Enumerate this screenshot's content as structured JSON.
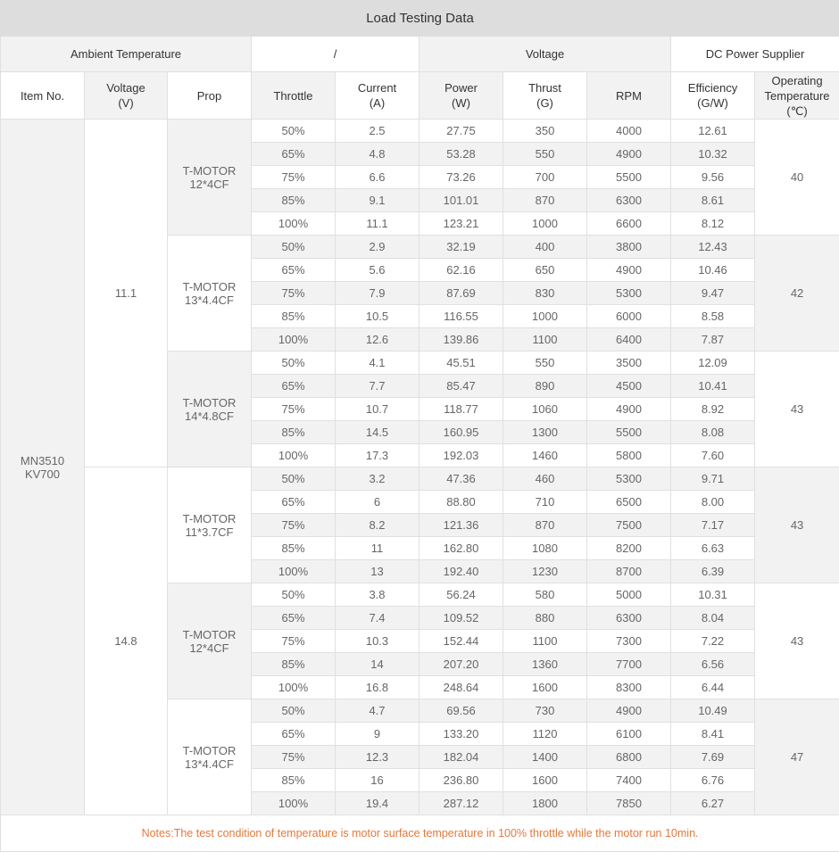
{
  "title": "Load Testing Data",
  "header_row1": [
    "Ambient Temperature",
    "/",
    "Voltage",
    "DC Power Supplier"
  ],
  "columns": [
    [
      "Item No."
    ],
    [
      "Voltage",
      "(V)"
    ],
    [
      "Prop"
    ],
    [
      "Throttle"
    ],
    [
      "Current",
      "(A)"
    ],
    [
      "Power",
      "(W)"
    ],
    [
      "Thrust",
      "(G)"
    ],
    [
      "RPM"
    ],
    [
      "Efficiency",
      "(G/W)"
    ],
    [
      "Operating",
      "Temperature",
      "(℃)"
    ]
  ],
  "item_no": [
    "MN3510",
    "KV700"
  ],
  "voltage_groups": [
    {
      "voltage": "11.1",
      "props": [
        {
          "prop": [
            "T-MOTOR",
            "12*4CF"
          ],
          "op_temp": "40",
          "rows": [
            [
              "50%",
              "2.5",
              "27.75",
              "350",
              "4000",
              "12.61"
            ],
            [
              "65%",
              "4.8",
              "53.28",
              "550",
              "4900",
              "10.32"
            ],
            [
              "75%",
              "6.6",
              "73.26",
              "700",
              "5500",
              "9.56"
            ],
            [
              "85%",
              "9.1",
              "101.01",
              "870",
              "6300",
              "8.61"
            ],
            [
              "100%",
              "11.1",
              "123.21",
              "1000",
              "6600",
              "8.12"
            ]
          ]
        },
        {
          "prop": [
            "T-MOTOR",
            "13*4.4CF"
          ],
          "op_temp": "42",
          "rows": [
            [
              "50%",
              "2.9",
              "32.19",
              "400",
              "3800",
              "12.43"
            ],
            [
              "65%",
              "5.6",
              "62.16",
              "650",
              "4900",
              "10.46"
            ],
            [
              "75%",
              "7.9",
              "87.69",
              "830",
              "5300",
              "9.47"
            ],
            [
              "85%",
              "10.5",
              "116.55",
              "1000",
              "6000",
              "8.58"
            ],
            [
              "100%",
              "12.6",
              "139.86",
              "1100",
              "6400",
              "7.87"
            ]
          ]
        },
        {
          "prop": [
            "T-MOTOR",
            "14*4.8CF"
          ],
          "op_temp": "43",
          "rows": [
            [
              "50%",
              "4.1",
              "45.51",
              "550",
              "3500",
              "12.09"
            ],
            [
              "65%",
              "7.7",
              "85.47",
              "890",
              "4500",
              "10.41"
            ],
            [
              "75%",
              "10.7",
              "118.77",
              "1060",
              "4900",
              "8.92"
            ],
            [
              "85%",
              "14.5",
              "160.95",
              "1300",
              "5500",
              "8.08"
            ],
            [
              "100%",
              "17.3",
              "192.03",
              "1460",
              "5800",
              "7.60"
            ]
          ]
        }
      ]
    },
    {
      "voltage": "14.8",
      "props": [
        {
          "prop": [
            "T-MOTOR",
            "11*3.7CF"
          ],
          "op_temp": "43",
          "rows": [
            [
              "50%",
              "3.2",
              "47.36",
              "460",
              "5300",
              "9.71"
            ],
            [
              "65%",
              "6",
              "88.80",
              "710",
              "6500",
              "8.00"
            ],
            [
              "75%",
              "8.2",
              "121.36",
              "870",
              "7500",
              "7.17"
            ],
            [
              "85%",
              "11",
              "162.80",
              "1080",
              "8200",
              "6.63"
            ],
            [
              "100%",
              "13",
              "192.40",
              "1230",
              "8700",
              "6.39"
            ]
          ]
        },
        {
          "prop": [
            "T-MOTOR",
            "12*4CF"
          ],
          "op_temp": "43",
          "rows": [
            [
              "50%",
              "3.8",
              "56.24",
              "580",
              "5000",
              "10.31"
            ],
            [
              "65%",
              "7.4",
              "109.52",
              "880",
              "6300",
              "8.04"
            ],
            [
              "75%",
              "10.3",
              "152.44",
              "1100",
              "7300",
              "7.22"
            ],
            [
              "85%",
              "14",
              "207.20",
              "1360",
              "7700",
              "6.56"
            ],
            [
              "100%",
              "16.8",
              "248.64",
              "1600",
              "8300",
              "6.44"
            ]
          ]
        },
        {
          "prop": [
            "T-MOTOR",
            "13*4.4CF"
          ],
          "op_temp": "47",
          "rows": [
            [
              "50%",
              "4.7",
              "69.56",
              "730",
              "4900",
              "10.49"
            ],
            [
              "65%",
              "9",
              "133.20",
              "1120",
              "6100",
              "8.41"
            ],
            [
              "75%",
              "12.3",
              "182.04",
              "1400",
              "6800",
              "7.69"
            ],
            [
              "85%",
              "16",
              "236.80",
              "1600",
              "7400",
              "6.76"
            ],
            [
              "100%",
              "19.4",
              "287.12",
              "1800",
              "7850",
              "6.27"
            ]
          ]
        }
      ]
    }
  ],
  "notes": "Notes:The test condition of temperature is motor surface temperature in 100% throttle while the motor run 10min.",
  "colors": {
    "header_bg": "#dddddd",
    "stripe": "#f2f2f2",
    "notes_text": "#e8773a"
  }
}
